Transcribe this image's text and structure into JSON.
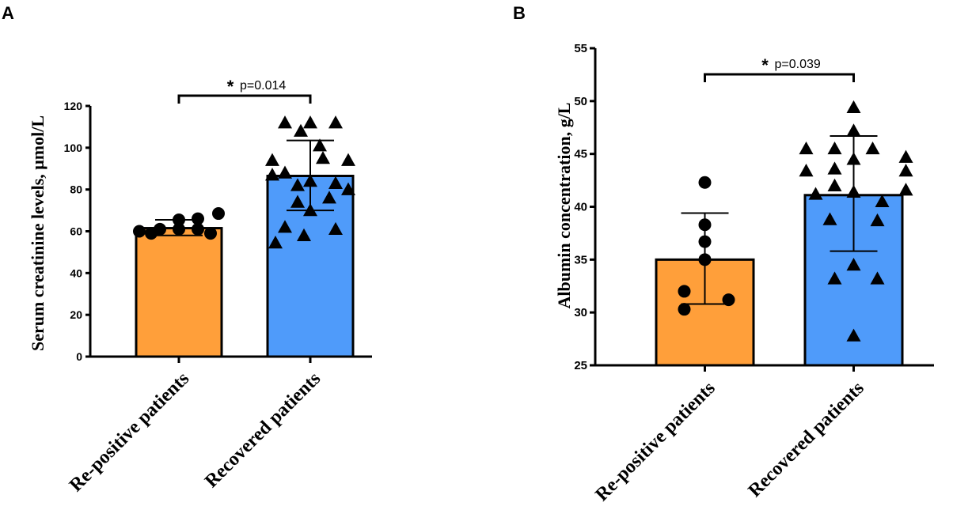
{
  "colors": {
    "orange": "#FF9F3A",
    "blue": "#4F9BFA",
    "ink": "#000000"
  },
  "chart_data": [
    {
      "panel": "A",
      "type": "bar",
      "ylabel": "Serum creatinine levels,  μmol/L",
      "ylim": [
        0,
        120
      ],
      "yticks": [
        "0",
        "20",
        "40",
        "60",
        "80",
        "100",
        "120"
      ],
      "categories": [
        "Re-positive patients",
        "Recovered patients"
      ],
      "values": [
        61.5,
        86.5
      ],
      "error_low": [
        58,
        70
      ],
      "error_high": [
        65.5,
        103.5
      ],
      "points": [
        [
          60,
          61,
          61,
          61,
          65.5,
          66,
          68.5,
          59,
          59
        ],
        [
          112,
          112,
          112,
          108,
          101,
          94,
          95,
          94,
          88,
          87,
          84,
          83,
          82,
          80,
          76,
          74,
          70,
          62,
          61,
          58,
          54.5
        ]
      ],
      "significance": {
        "star": "*",
        "label": "p=0.014"
      }
    },
    {
      "panel": "B",
      "type": "bar",
      "ylabel": "Albumin concentration,  g/L",
      "ylim": [
        25,
        55
      ],
      "yticks": [
        "25",
        "30",
        "35",
        "40",
        "45",
        "50",
        "55"
      ],
      "categories": [
        "Re-positive patients",
        "Recovered patients"
      ],
      "values": [
        35,
        41.1
      ],
      "error_low": [
        30.8,
        35.8
      ],
      "error_high": [
        39.4,
        46.7
      ],
      "points": [
        [
          42.3,
          38.3,
          36.7,
          35.0,
          32.0,
          31.2,
          30.3
        ],
        [
          49.4,
          47.2,
          45.5,
          45.5,
          45.5,
          44.7,
          44.5,
          43.6,
          43.4,
          43.4,
          42.0,
          41.6,
          41.2,
          41.4,
          40.5,
          38.8,
          38.7,
          34.5,
          33.2,
          33.2,
          27.8
        ]
      ],
      "significance": {
        "star": "*",
        "label": "p=0.039"
      }
    }
  ]
}
